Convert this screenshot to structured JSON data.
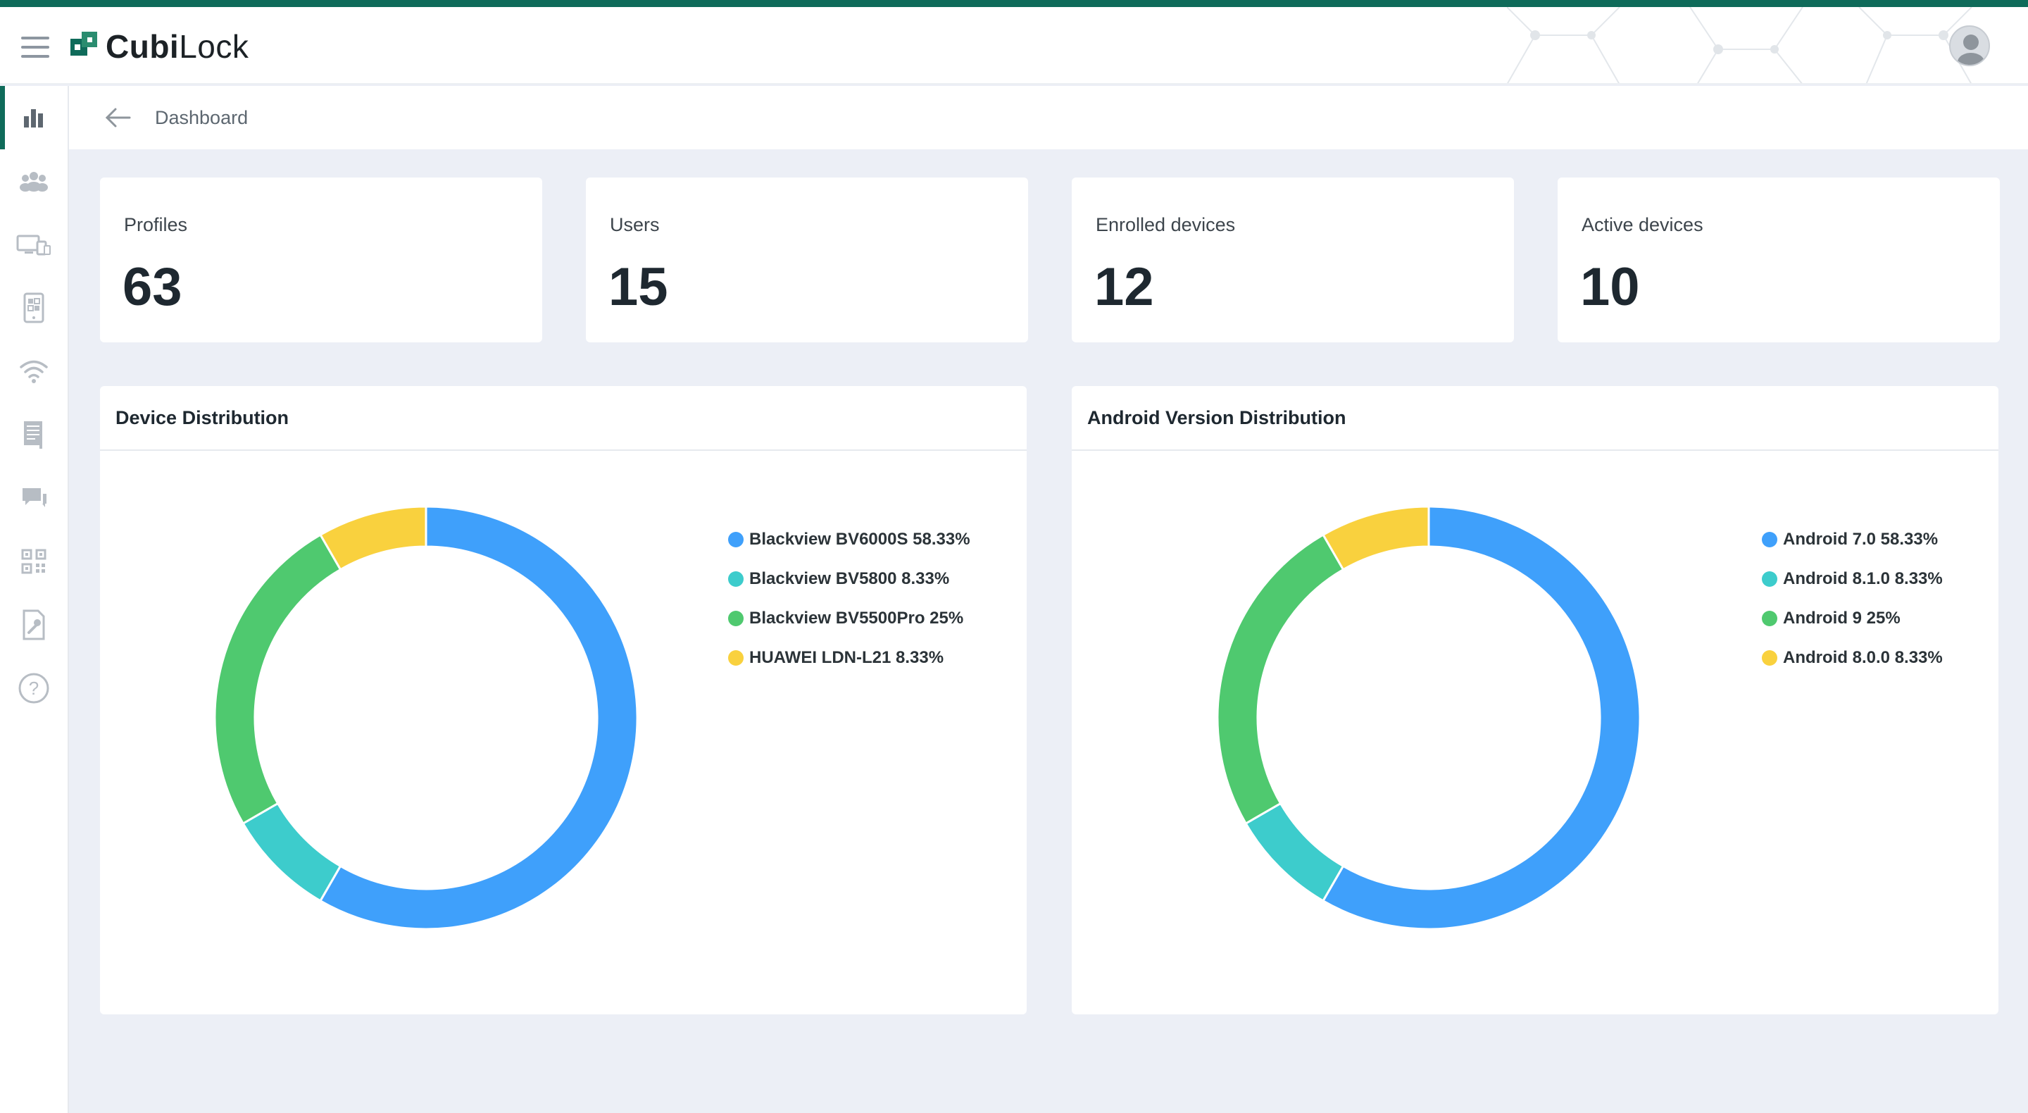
{
  "brand": {
    "name_part1": "Cubi",
    "name_part2": "Lock",
    "accent": "#0f6b5a"
  },
  "header": {
    "menu_icon": "hamburger-icon",
    "avatar_icon": "user-avatar-icon"
  },
  "sidebar": {
    "items": [
      {
        "icon": "bar-chart-icon",
        "active": true
      },
      {
        "icon": "users-group-icon",
        "active": false
      },
      {
        "icon": "devices-icon",
        "active": false
      },
      {
        "icon": "tablet-apps-icon",
        "active": false
      },
      {
        "icon": "wifi-icon",
        "active": false
      },
      {
        "icon": "document-list-icon",
        "active": false
      },
      {
        "icon": "chat-icon",
        "active": false
      },
      {
        "icon": "qr-code-icon",
        "active": false
      },
      {
        "icon": "file-wrench-icon",
        "active": false
      },
      {
        "icon": "help-icon",
        "active": false
      }
    ]
  },
  "breadcrumb": {
    "label": "Dashboard"
  },
  "stats": [
    {
      "label": "Profiles",
      "value": "63"
    },
    {
      "label": "Users",
      "value": "15"
    },
    {
      "label": "Enrolled devices",
      "value": "12"
    },
    {
      "label": "Active devices",
      "value": "10"
    }
  ],
  "colors": {
    "blue": "#3fa0fb",
    "teal": "#3dcccc",
    "green": "#4fc96f",
    "yellow": "#f9d13e"
  },
  "chart_data": [
    {
      "type": "pie",
      "title": "Device Distribution",
      "categories": [
        "Blackview BV6000S",
        "Blackview BV5800",
        "Blackview BV5500Pro",
        "HUAWEI LDN-L21"
      ],
      "values": [
        58.33,
        8.33,
        25,
        8.33
      ],
      "legend_labels": [
        "Blackview BV6000S 58.33%",
        "Blackview BV5800 8.33%",
        "Blackview BV5500Pro 25%",
        "HUAWEI LDN-L21 8.33%"
      ],
      "colors": [
        "#3fa0fb",
        "#3dcccc",
        "#4fc96f",
        "#f9d13e"
      ],
      "legend_position": "right"
    },
    {
      "type": "pie",
      "title": "Android Version Distribution",
      "categories": [
        "Android 7.0",
        "Android 8.1.0",
        "Android 9",
        "Android 8.0.0"
      ],
      "values": [
        58.33,
        8.33,
        25,
        8.33
      ],
      "legend_labels": [
        "Android 7.0 58.33%",
        "Android 8.1.0 8.33%",
        "Android 9 25%",
        "Android 8.0.0 8.33%"
      ],
      "colors": [
        "#3fa0fb",
        "#3dcccc",
        "#4fc96f",
        "#f9d13e"
      ],
      "legend_position": "right"
    }
  ]
}
